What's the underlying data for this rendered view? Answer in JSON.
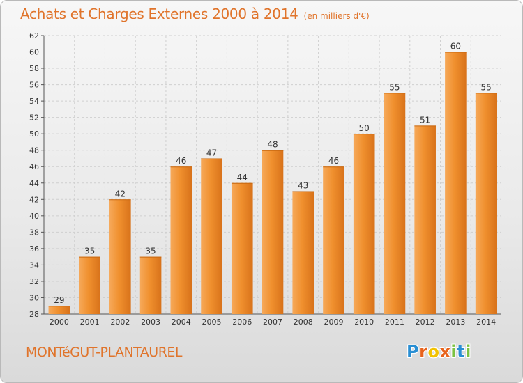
{
  "title": "Achats et Charges Externes 2000 à 2014",
  "unit": "(en milliers d'€)",
  "commune": "MONTéGUT-PLANTAUREL",
  "logo": {
    "letters": [
      "P",
      "r",
      "o",
      "x",
      "i",
      "t",
      "i"
    ],
    "colors": [
      "#2a8fd3",
      "#e8631c",
      "#f2c200",
      "#e8631c",
      "#7cc242",
      "#2a8fd3",
      "#7cc242"
    ]
  },
  "colors": {
    "bar": "#f0902e",
    "bar_light": "#f6a95a",
    "bar_dark": "#d8721a",
    "title": "#e0742b",
    "grid": "#cfcfcf"
  },
  "chart_data": {
    "type": "bar",
    "categories": [
      "2000",
      "2001",
      "2002",
      "2003",
      "2004",
      "2005",
      "2006",
      "2007",
      "2008",
      "2009",
      "2010",
      "2011",
      "2012",
      "2013",
      "2014"
    ],
    "values": [
      29,
      35,
      42,
      35,
      46,
      47,
      44,
      48,
      43,
      46,
      50,
      55,
      51,
      60,
      55
    ],
    "ylim": [
      28,
      62
    ],
    "yticks": [
      28,
      30,
      32,
      34,
      36,
      38,
      40,
      42,
      44,
      46,
      48,
      50,
      52,
      54,
      56,
      58,
      60,
      62
    ],
    "grid": true
  }
}
